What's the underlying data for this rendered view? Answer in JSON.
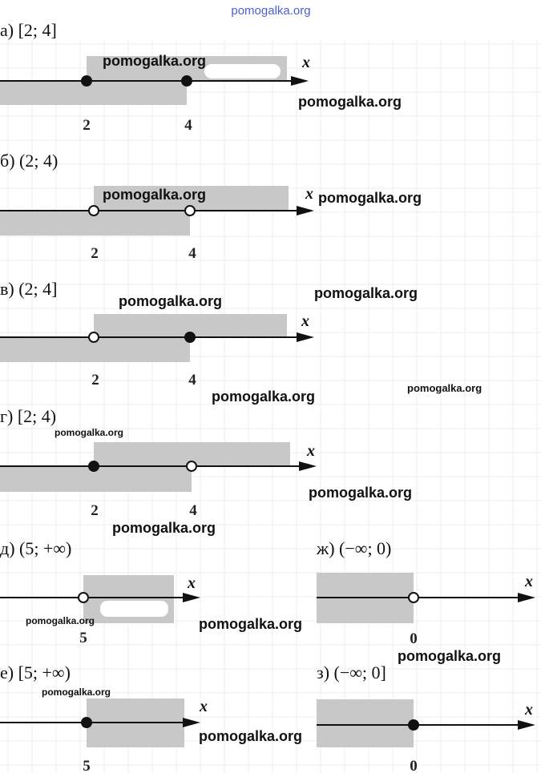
{
  "watermark_top": "pomogalka.org",
  "panels": [
    {
      "label": "а) [2; 4]",
      "axis_label": "x",
      "ticks": [
        "2",
        "4"
      ]
    },
    {
      "label": "б) (2; 4)",
      "axis_label": "x",
      "ticks": [
        "2",
        "4"
      ]
    },
    {
      "label": "в) (2; 4]",
      "axis_label": "x",
      "ticks": [
        "2",
        "4"
      ]
    },
    {
      "label": "г) [2; 4)",
      "axis_label": "x",
      "ticks": [
        "2",
        "4"
      ]
    },
    {
      "label": "д) (5; +∞)",
      "axis_label": "x",
      "ticks": [
        "5"
      ]
    },
    {
      "label": "ж) (−∞; 0)",
      "axis_label": "x",
      "ticks": [
        "0"
      ]
    },
    {
      "label": "е) [5;  +∞)",
      "axis_label": "x",
      "ticks": [
        "5"
      ]
    },
    {
      "label": "з) (−∞; 0]",
      "axis_label": "x",
      "ticks": [
        "0"
      ]
    }
  ],
  "watermarks": [
    "pomogalka.org",
    "pomogalka.org",
    "pomogalka.org",
    "pomogalka.org",
    "pomogalka.org",
    "pomogalka.org",
    "pomogalka.org",
    "pomogalka.org",
    "pomogalka.org",
    "pomogalka.org",
    "pomogalka.org",
    "pomogalka.org",
    "pomogalka.org",
    "pomogalka.org",
    "pomogalka.org",
    "pomogalka.org"
  ]
}
